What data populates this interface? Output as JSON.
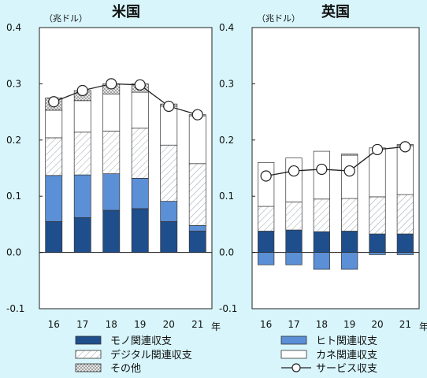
{
  "unit_label": "（兆ドル）",
  "year_suffix": "年",
  "colors": {
    "background": "#d7f5fb",
    "mono": "#1f4e8c",
    "hito": "#5b8fd6",
    "digital": "#ffffff",
    "kane": "#ffffff",
    "other": "#d9d9d9",
    "line": "#222222"
  },
  "chart_data": [
    {
      "type": "bar",
      "title": "米国",
      "categories": [
        "16",
        "17",
        "18",
        "19",
        "20",
        "21"
      ],
      "ylim": [
        -0.1,
        0.4
      ],
      "yticks": [
        "0.4",
        "0.3",
        "0.2",
        "0.1",
        "0.0",
        "-0.1"
      ],
      "stacked": true,
      "series": [
        {
          "name": "モノ関連収支",
          "values": [
            0.055,
            0.062,
            0.075,
            0.078,
            0.055,
            0.038
          ]
        },
        {
          "name": "ヒト関連収支",
          "values": [
            0.082,
            0.076,
            0.065,
            0.054,
            0.036,
            0.01
          ]
        },
        {
          "name": "デジタル関連収支",
          "values": [
            0.067,
            0.076,
            0.076,
            0.089,
            0.1,
            0.11
          ]
        },
        {
          "name": "カネ関連収支",
          "values": [
            0.049,
            0.056,
            0.066,
            0.064,
            0.069,
            0.085
          ]
        },
        {
          "name": "その他",
          "values": [
            0.022,
            0.018,
            0.018,
            0.015,
            0.004,
            0.002
          ]
        }
      ],
      "line": {
        "name": "サービス収支",
        "values": [
          0.268,
          0.288,
          0.3,
          0.298,
          0.26,
          0.245
        ]
      }
    },
    {
      "type": "bar",
      "title": "英国",
      "categories": [
        "16",
        "17",
        "18",
        "19",
        "20",
        "21"
      ],
      "ylim": [
        -0.1,
        0.4
      ],
      "yticks": [
        "0.4",
        "0.3",
        "0.2",
        "0.1",
        "0.0",
        "-0.1"
      ],
      "stacked": true,
      "series": [
        {
          "name": "モノ関連収支",
          "values": [
            0.038,
            0.04,
            0.037,
            0.038,
            0.033,
            0.033
          ]
        },
        {
          "name": "ヒト関連収支",
          "values": [
            -0.022,
            -0.022,
            -0.03,
            -0.03,
            -0.004,
            -0.004
          ]
        },
        {
          "name": "デジタル関連収支",
          "values": [
            0.044,
            0.05,
            0.058,
            0.058,
            0.066,
            0.07
          ]
        },
        {
          "name": "カネ関連収支",
          "values": [
            0.078,
            0.078,
            0.085,
            0.077,
            0.087,
            0.087
          ]
        },
        {
          "name": "その他",
          "values": [
            0.0,
            0.0,
            0.0,
            0.002,
            0.0,
            0.002
          ]
        }
      ],
      "line": {
        "name": "サービス収支",
        "values": [
          0.136,
          0.145,
          0.148,
          0.145,
          0.183,
          0.188
        ]
      }
    }
  ],
  "legend": [
    {
      "label": "モノ関連収支",
      "kind": "mono"
    },
    {
      "label": "ヒト関連収支",
      "kind": "hito"
    },
    {
      "label": "デジタル関連収支",
      "kind": "digital"
    },
    {
      "label": "カネ関連収支",
      "kind": "kane"
    },
    {
      "label": "その他",
      "kind": "other"
    },
    {
      "label": "サービス収支",
      "kind": "line"
    }
  ]
}
